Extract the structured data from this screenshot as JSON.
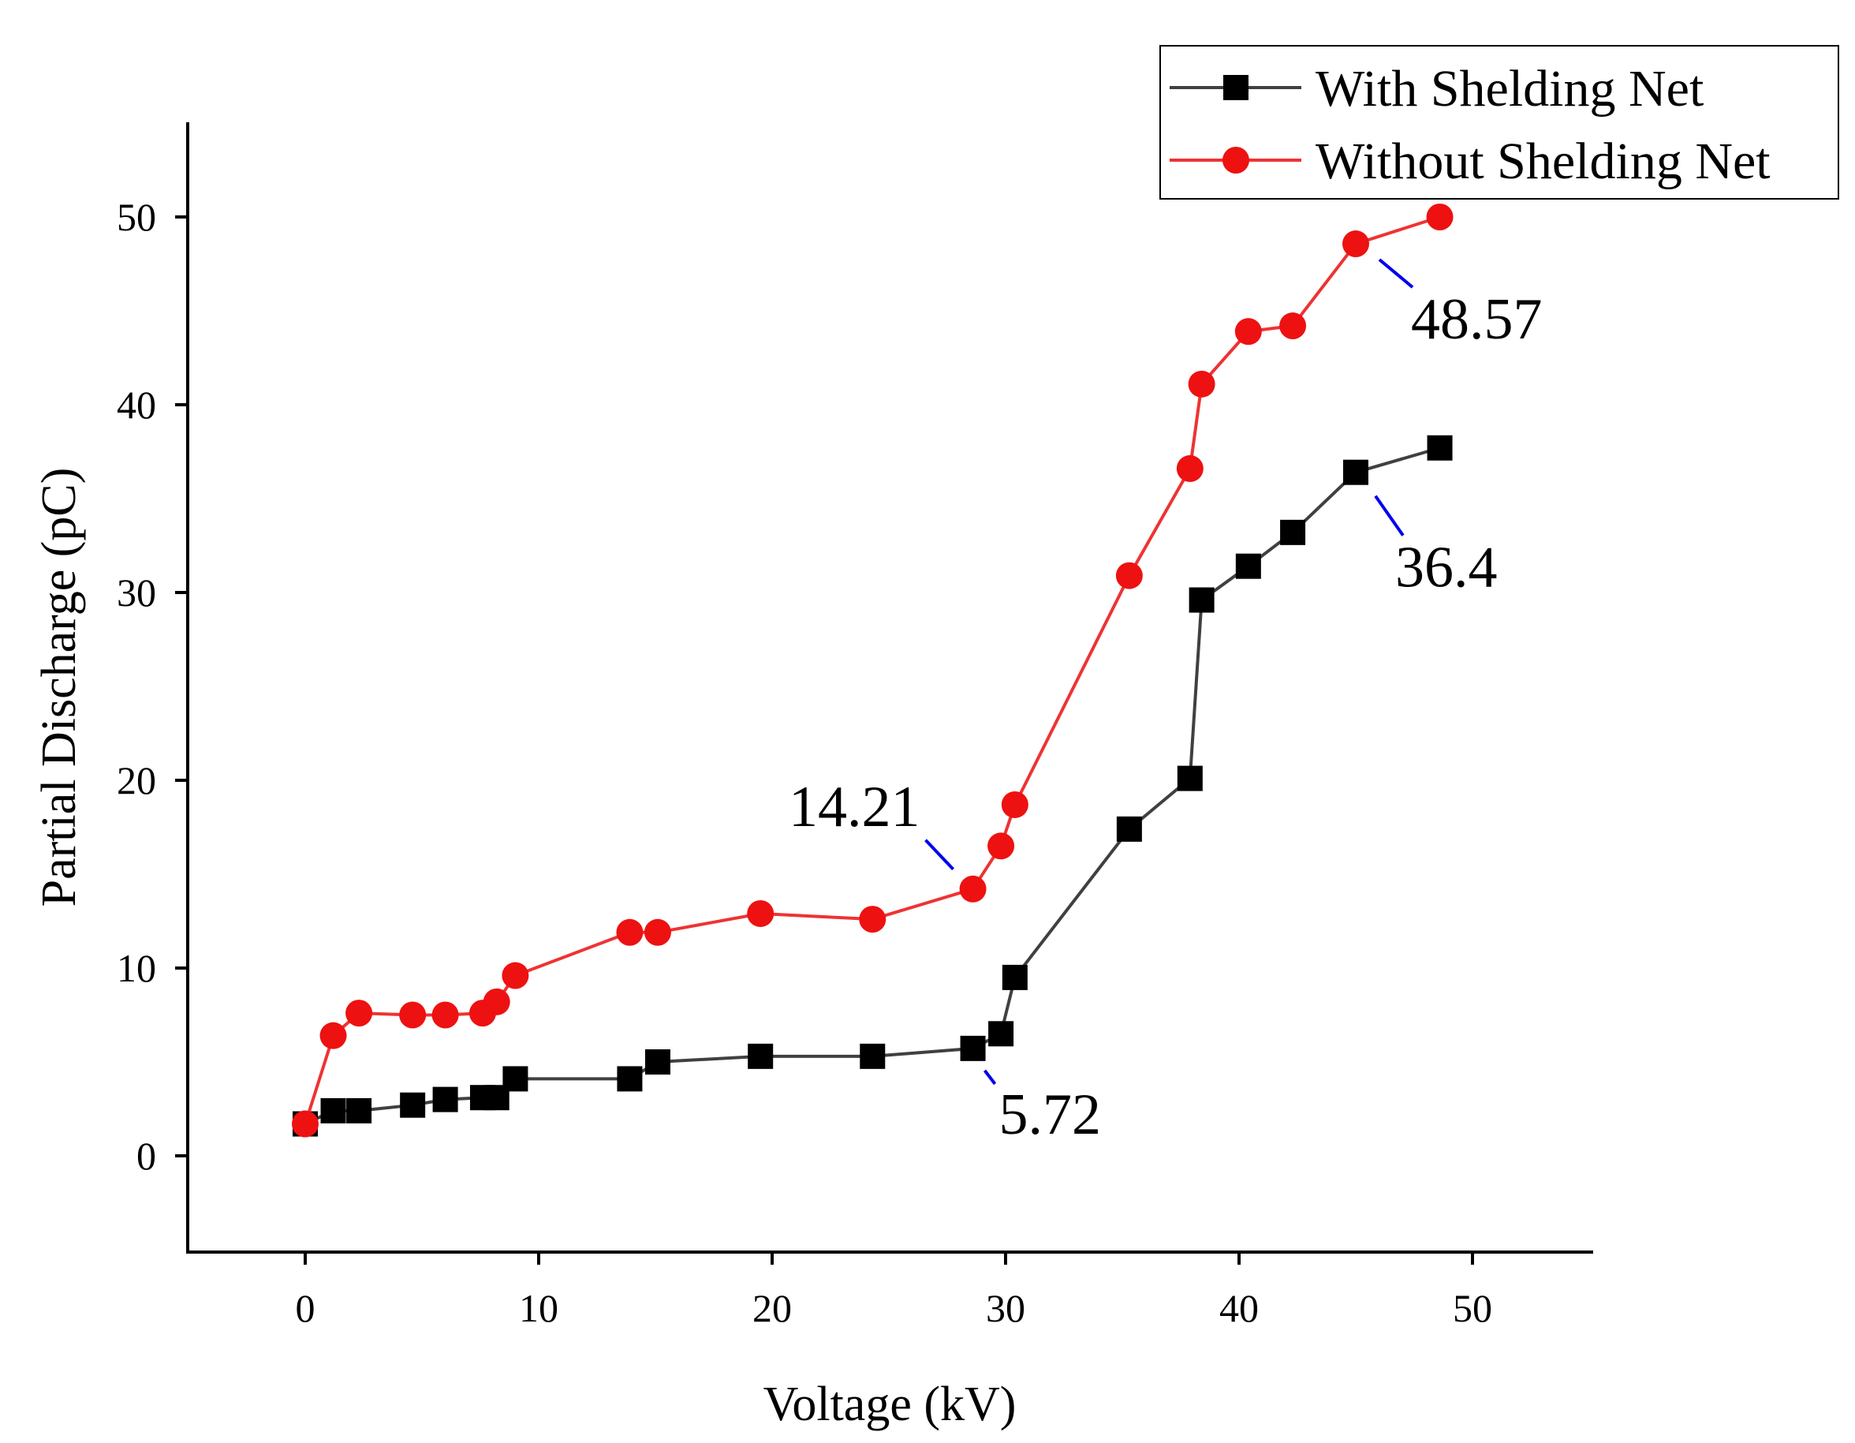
{
  "chart_data": {
    "type": "line",
    "xlabel": "Voltage (kV)",
    "ylabel": "Partial Discharge (pC)",
    "xlim": [
      -5,
      55
    ],
    "ylim": [
      -5,
      55
    ],
    "xticks": [
      0,
      10,
      20,
      30,
      40,
      50
    ],
    "yticks": [
      0,
      10,
      20,
      30,
      40,
      50
    ],
    "legend_position": "top-right",
    "series": [
      {
        "name": "With Shelding Net",
        "color": "#404040",
        "marker": "square",
        "x": [
          0,
          1.2,
          2.3,
          4.6,
          6.0,
          7.6,
          8.2,
          9.0,
          13.9,
          15.1,
          19.5,
          24.3,
          28.6,
          29.8,
          30.4,
          35.3,
          37.9,
          38.4,
          40.4,
          42.3,
          45.0,
          48.6
        ],
        "y": [
          1.7,
          2.4,
          2.4,
          2.7,
          3.0,
          3.1,
          3.1,
          4.1,
          4.1,
          5.0,
          5.3,
          5.3,
          5.72,
          6.5,
          9.5,
          17.4,
          20.1,
          29.6,
          31.4,
          33.2,
          36.4,
          37.7
        ]
      },
      {
        "name": "Without Shelding Net",
        "color": "#ee3333",
        "marker": "circle",
        "x": [
          0,
          1.2,
          2.3,
          4.6,
          6.0,
          7.6,
          8.2,
          9.0,
          13.9,
          15.1,
          19.5,
          24.3,
          28.6,
          29.8,
          30.4,
          35.3,
          37.9,
          38.4,
          40.4,
          42.3,
          45.0,
          48.6
        ],
        "y": [
          1.7,
          6.4,
          7.6,
          7.5,
          7.5,
          7.6,
          8.2,
          9.6,
          11.9,
          11.9,
          12.9,
          12.6,
          14.21,
          16.5,
          18.7,
          30.9,
          36.6,
          41.1,
          43.9,
          44.2,
          48.57,
          50.0
        ]
      }
    ],
    "annotations": [
      {
        "text": "48.57",
        "x": 45.0,
        "y": 48.57
      },
      {
        "text": "36.4",
        "x": 45.0,
        "y": 36.4
      },
      {
        "text": "14.21",
        "x": 28.6,
        "y": 14.21
      },
      {
        "text": "5.72",
        "x": 28.6,
        "y": 5.72
      }
    ]
  }
}
